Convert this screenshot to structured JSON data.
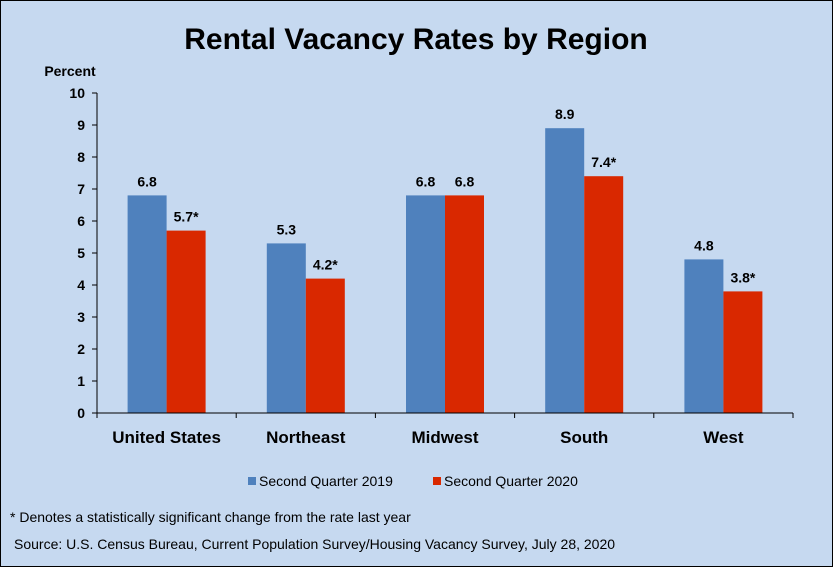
{
  "chart_data": {
    "type": "bar",
    "title": "Rental Vacancy Rates by Region",
    "ylabel": "Percent",
    "xlabel": "",
    "ylim": [
      0,
      10
    ],
    "yticks": [
      "0",
      "1",
      "2",
      "3",
      "4",
      "5",
      "6",
      "7",
      "8",
      "9",
      "10"
    ],
    "grid": false,
    "legend_position": "bottom",
    "categories": [
      "United States",
      "Northeast",
      "Midwest",
      "South",
      "West"
    ],
    "series": [
      {
        "name": "Second Quarter 2019",
        "color": "#4f81bd",
        "values": [
          6.8,
          5.3,
          6.8,
          8.9,
          4.8
        ],
        "labels": [
          "6.8",
          "5.3",
          "6.8",
          "8.9",
          "4.8"
        ]
      },
      {
        "name": "Second Quarter 2020",
        "color": "#d92800",
        "values": [
          5.7,
          4.2,
          6.8,
          7.4,
          3.8
        ],
        "labels": [
          "5.7*",
          "4.2*",
          "6.8",
          "7.4*",
          "3.8*"
        ]
      }
    ],
    "footnote": "* Denotes a statistically significant change from the rate last year",
    "source": "Source: U.S. Census Bureau, Current Population Survey/Housing Vacancy Survey, July 28, 2020"
  },
  "colors": {
    "background": "#c6d9f0",
    "axis": "#000000"
  }
}
